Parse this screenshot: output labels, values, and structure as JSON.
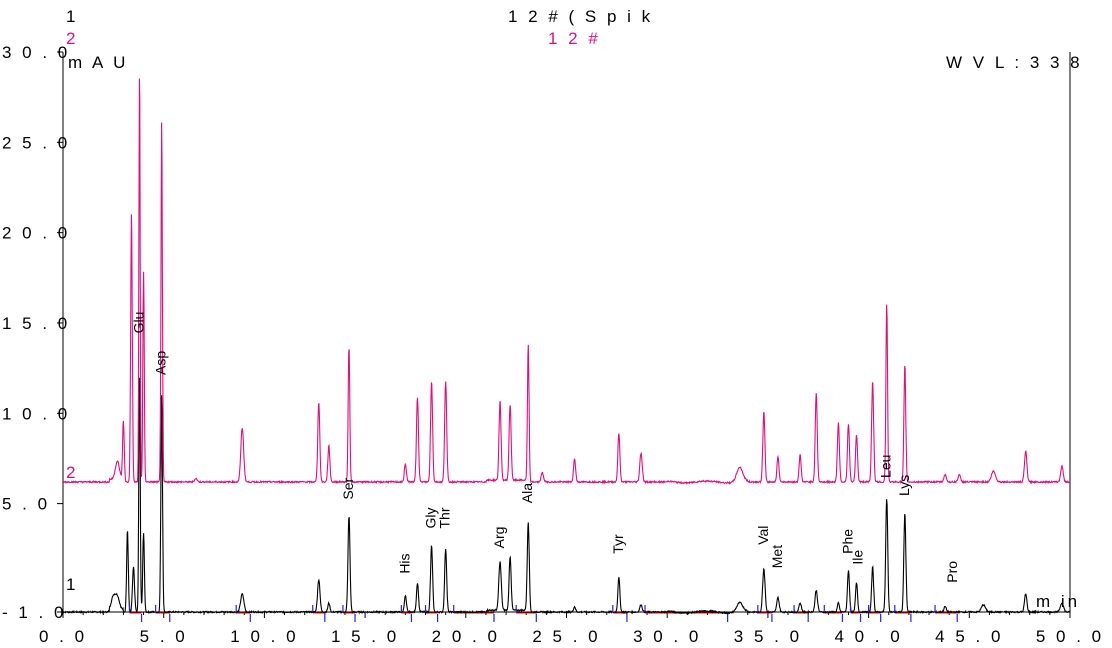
{
  "colors": {
    "trace1": "#000000",
    "trace2": "#e0107a",
    "baseline": "#ff0000",
    "marker": "#2020ff",
    "axis": "#000000"
  },
  "header": {
    "trace1_index": "1",
    "trace2_index": "2",
    "trace1_title": "1 2 # ( S p i k",
    "trace2_title": "1 2 #"
  },
  "chart_data": {
    "type": "line",
    "title": "12#(Spik",
    "y_unit_label": "m A U",
    "x_unit_label": "m in",
    "wavelength_label": "W  V L : 3 3 8",
    "xlim": [
      0,
      50
    ],
    "ylim": [
      -1.0,
      30.0
    ],
    "grid": false,
    "x_ticks": [
      0,
      5,
      10,
      15,
      20,
      25,
      30,
      35,
      40,
      45,
      50
    ],
    "x_tick_labels": [
      "0 . 0",
      "5 . 0",
      "1 0 . 0",
      "1 5 . 0",
      "2 0 . 0",
      "2 5 . 0",
      "3 0 . 0",
      "3 5 . 0",
      "4 0 . 0",
      "4 5 . 0",
      "5 0 . 0"
    ],
    "y_ticks": [
      -1.0,
      5.0,
      10.0,
      15.0,
      20.0,
      25.0,
      30.0
    ],
    "y_tick_labels": [
      "- 1 . 0",
      "5 . 0",
      "1 0 . 0",
      "1 5 . 0",
      "2 0 . 0",
      "2 5 . 0",
      "3 0 . 0"
    ],
    "series": [
      {
        "trace": "1",
        "baseline": -1.0,
        "peaks": [
          {
            "t": 2.5,
            "h": 0.7,
            "w": 0.1
          },
          {
            "t": 2.7,
            "h": 0.7,
            "w": 0.1
          },
          {
            "t": 3.2,
            "h": 4.6,
            "w": 0.04
          },
          {
            "t": 3.5,
            "h": 2.5,
            "w": 0.05
          },
          {
            "t": 3.8,
            "h": 13.3,
            "w": 0.035
          },
          {
            "t": 4.0,
            "h": 4.4,
            "w": 0.04
          },
          {
            "t": 4.9,
            "h": 12.1,
            "w": 0.04
          },
          {
            "t": 8.9,
            "h": 1.0,
            "w": 0.08
          },
          {
            "t": 12.7,
            "h": 1.8,
            "w": 0.06
          },
          {
            "t": 13.2,
            "h": 0.5,
            "w": 0.05
          },
          {
            "t": 14.2,
            "h": 5.3,
            "w": 0.05
          },
          {
            "t": 17.0,
            "h": 0.9,
            "w": 0.05
          },
          {
            "t": 17.6,
            "h": 1.6,
            "w": 0.05
          },
          {
            "t": 18.3,
            "h": 3.7,
            "w": 0.05
          },
          {
            "t": 19.0,
            "h": 3.5,
            "w": 0.05
          },
          {
            "t": 21.7,
            "h": 2.7,
            "w": 0.06
          },
          {
            "t": 22.2,
            "h": 3.0,
            "w": 0.05
          },
          {
            "t": 23.1,
            "h": 5.0,
            "w": 0.05
          },
          {
            "t": 25.4,
            "h": 0.3,
            "w": 0.05
          },
          {
            "t": 27.6,
            "h": 1.9,
            "w": 0.05
          },
          {
            "t": 28.7,
            "h": 0.4,
            "w": 0.06
          },
          {
            "t": 33.6,
            "h": 0.5,
            "w": 0.15
          },
          {
            "t": 34.8,
            "h": 2.4,
            "w": 0.06
          },
          {
            "t": 35.5,
            "h": 0.8,
            "w": 0.06
          },
          {
            "t": 36.6,
            "h": 0.5,
            "w": 0.06
          },
          {
            "t": 37.4,
            "h": 1.2,
            "w": 0.06
          },
          {
            "t": 38.5,
            "h": 0.5,
            "w": 0.05
          },
          {
            "t": 39.0,
            "h": 2.3,
            "w": 0.05
          },
          {
            "t": 39.4,
            "h": 1.6,
            "w": 0.05
          },
          {
            "t": 40.2,
            "h": 2.5,
            "w": 0.05
          },
          {
            "t": 40.9,
            "h": 6.3,
            "w": 0.05
          },
          {
            "t": 41.8,
            "h": 5.5,
            "w": 0.05
          },
          {
            "t": 43.8,
            "h": 0.3,
            "w": 0.06
          },
          {
            "t": 45.7,
            "h": 0.4,
            "w": 0.1
          },
          {
            "t": 47.8,
            "h": 1.0,
            "w": 0.06
          },
          {
            "t": 49.6,
            "h": 0.5,
            "w": 0.08
          }
        ]
      },
      {
        "trace": "2",
        "baseline": 6.2,
        "peaks": [
          {
            "t": 2.7,
            "h": 1.0,
            "w": 0.1
          },
          {
            "t": 3.0,
            "h": 3.4,
            "w": 0.04
          },
          {
            "t": 3.4,
            "h": 14.9,
            "w": 0.04
          },
          {
            "t": 3.8,
            "h": 23.2,
            "w": 0.03
          },
          {
            "t": 4.0,
            "h": 11.6,
            "w": 0.035
          },
          {
            "t": 4.9,
            "h": 20.0,
            "w": 0.035
          },
          {
            "t": 6.6,
            "h": 0.2,
            "w": 0.06
          },
          {
            "t": 8.9,
            "h": 3.0,
            "w": 0.07
          },
          {
            "t": 12.7,
            "h": 4.4,
            "w": 0.05
          },
          {
            "t": 13.2,
            "h": 2.0,
            "w": 0.05
          },
          {
            "t": 14.2,
            "h": 7.5,
            "w": 0.04
          },
          {
            "t": 17.0,
            "h": 1.0,
            "w": 0.05
          },
          {
            "t": 17.6,
            "h": 4.7,
            "w": 0.05
          },
          {
            "t": 18.3,
            "h": 5.6,
            "w": 0.05
          },
          {
            "t": 19.0,
            "h": 5.6,
            "w": 0.05
          },
          {
            "t": 21.7,
            "h": 4.4,
            "w": 0.05
          },
          {
            "t": 22.2,
            "h": 4.2,
            "w": 0.05
          },
          {
            "t": 23.1,
            "h": 7.6,
            "w": 0.04
          },
          {
            "t": 23.8,
            "h": 0.5,
            "w": 0.06
          },
          {
            "t": 25.4,
            "h": 1.3,
            "w": 0.05
          },
          {
            "t": 27.6,
            "h": 2.7,
            "w": 0.05
          },
          {
            "t": 28.7,
            "h": 1.6,
            "w": 0.06
          },
          {
            "t": 33.6,
            "h": 0.8,
            "w": 0.15
          },
          {
            "t": 34.8,
            "h": 3.9,
            "w": 0.05
          },
          {
            "t": 35.5,
            "h": 1.4,
            "w": 0.05
          },
          {
            "t": 36.6,
            "h": 1.5,
            "w": 0.05
          },
          {
            "t": 37.4,
            "h": 4.9,
            "w": 0.05
          },
          {
            "t": 38.5,
            "h": 3.3,
            "w": 0.05
          },
          {
            "t": 39.0,
            "h": 3.2,
            "w": 0.05
          },
          {
            "t": 39.4,
            "h": 2.6,
            "w": 0.05
          },
          {
            "t": 40.2,
            "h": 5.6,
            "w": 0.05
          },
          {
            "t": 40.9,
            "h": 9.9,
            "w": 0.04
          },
          {
            "t": 41.8,
            "h": 6.5,
            "w": 0.045
          },
          {
            "t": 43.8,
            "h": 0.4,
            "w": 0.06
          },
          {
            "t": 44.5,
            "h": 0.4,
            "w": 0.06
          },
          {
            "t": 46.2,
            "h": 0.6,
            "w": 0.1
          },
          {
            "t": 47.8,
            "h": 1.7,
            "w": 0.06
          },
          {
            "t": 49.6,
            "h": 0.9,
            "w": 0.06
          }
        ]
      }
    ],
    "peak_labels": [
      {
        "label": "Glu",
        "t": 3.8,
        "y": 14.2
      },
      {
        "label": "Asp",
        "t": 4.9,
        "y": 11.9
      },
      {
        "label": "Ser",
        "t": 14.2,
        "y": 5.0
      },
      {
        "label": "His",
        "t": 17.0,
        "y": 0.9
      },
      {
        "label": "Gly",
        "t": 18.3,
        "y": 3.4
      },
      {
        "label": "Thr",
        "t": 19.0,
        "y": 3.4
      },
      {
        "label": "Arg",
        "t": 21.7,
        "y": 2.3
      },
      {
        "label": "Ala",
        "t": 23.1,
        "y": 4.8
      },
      {
        "label": "Tyr",
        "t": 27.6,
        "y": 2.0
      },
      {
        "label": "Val",
        "t": 34.8,
        "y": 2.5
      },
      {
        "label": "Met",
        "t": 35.5,
        "y": 1.2
      },
      {
        "label": "Phe",
        "t": 39.0,
        "y": 2.0
      },
      {
        "label": "Ile",
        "t": 39.5,
        "y": 1.4
      },
      {
        "label": "Leu",
        "t": 40.9,
        "y": 6.2
      },
      {
        "label": "Lys",
        "t": 41.8,
        "y": 5.2
      },
      {
        "label": "Pro",
        "t": 44.2,
        "y": 0.4
      }
    ],
    "integration_marks_t": [
      3.3,
      3.9,
      4.6,
      5.3,
      8.6,
      9.3,
      12.4,
      13.0,
      13.9,
      14.5,
      16.8,
      17.3,
      18.0,
      18.6,
      19.4,
      21.4,
      22.5,
      23.5,
      27.3,
      28.0,
      28.9,
      33.0,
      34.5,
      35.2,
      36.3,
      37.0,
      37.8,
      38.7,
      39.1,
      39.6,
      40.0,
      40.6,
      41.3,
      42.1,
      43.3,
      44.4
    ]
  }
}
